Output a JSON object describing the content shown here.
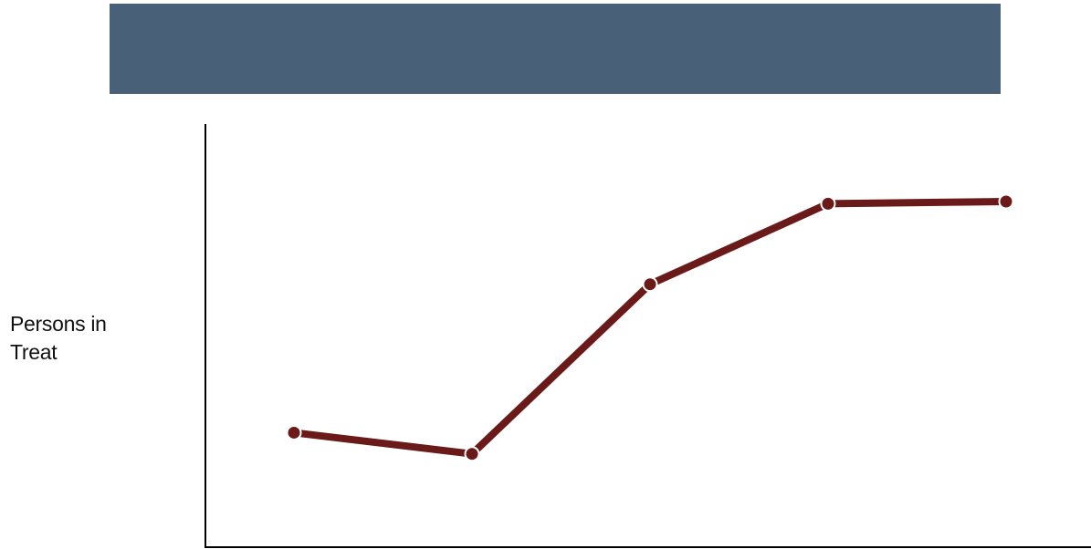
{
  "header": {
    "color": "#486178"
  },
  "chart_data": {
    "type": "line",
    "title": "",
    "xlabel": "",
    "ylabel": "Persons in Treat",
    "ylabel_lines": [
      "Persons in",
      "Treat"
    ],
    "grid": false,
    "legend": "none",
    "x": [
      1,
      2,
      3,
      4,
      5
    ],
    "series": [
      {
        "values": [
          27,
          22,
          62,
          81,
          81.5
        ],
        "color": "#6b1a1a"
      }
    ],
    "ylim": [
      0,
      100
    ]
  }
}
